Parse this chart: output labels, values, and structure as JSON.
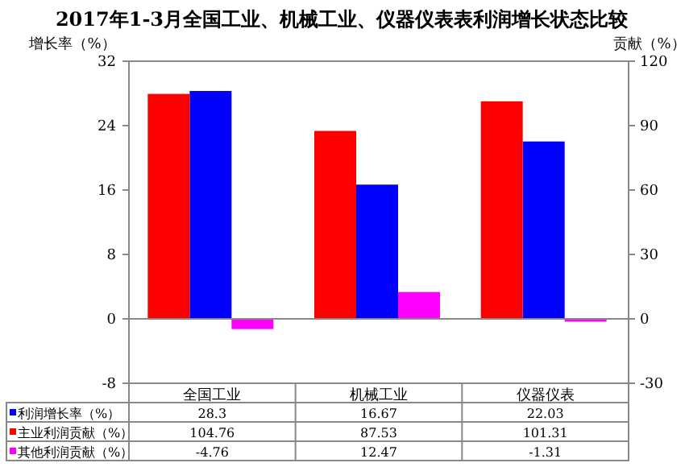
{
  "chart_data": {
    "type": "bar",
    "title": "2017年1-3月全国工业、机械工业、仪器仪表表利润增长状态比较",
    "ylabel": "增长率（%）",
    "y2label": "贡献（%）",
    "categories": [
      "全国工业",
      "机械工业",
      "仪器仪表"
    ],
    "series": [
      {
        "name": "利润增长率（%）",
        "color": "#0000ff",
        "values": [
          28.3,
          16.67,
          22.03
        ]
      },
      {
        "name": "主业利润贡献（%）",
        "color": "#ff0000",
        "values": [
          104.76,
          87.53,
          101.31
        ],
        "axis": "y2"
      },
      {
        "name": "其他利润贡献（%）",
        "color": "#ff00ff",
        "values": [
          -4.76,
          12.47,
          -1.31
        ],
        "axis": "y2"
      }
    ],
    "ylim": [
      -8,
      32
    ],
    "yticks": [
      -8,
      0,
      8,
      16,
      24,
      32
    ],
    "y2lim": [
      -30,
      120
    ],
    "y2ticks": [
      -30,
      0,
      30,
      60,
      90,
      120
    ],
    "data_labels": true,
    "legend": "bottom left"
  }
}
